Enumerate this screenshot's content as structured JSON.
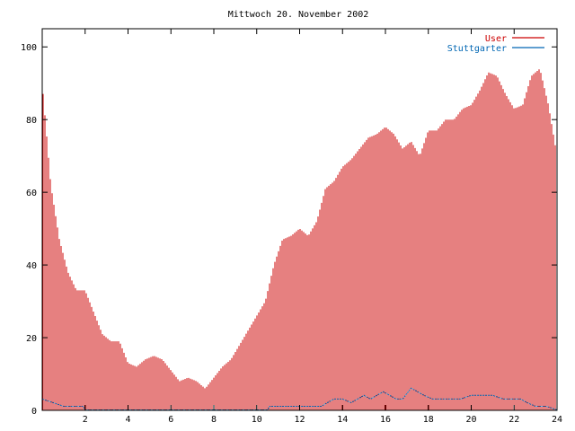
{
  "chart_data": {
    "type": "bar",
    "title": "Mittwoch 20. November 2002",
    "xlabel": "",
    "ylabel": "",
    "xlim": [
      0,
      24
    ],
    "ylim": [
      0,
      105
    ],
    "x_ticks": [
      "2",
      "4",
      "6",
      "8",
      "10",
      "12",
      "14",
      "16",
      "18",
      "20",
      "22",
      "24"
    ],
    "y_ticks": [
      "0",
      "20",
      "40",
      "60",
      "80",
      "100"
    ],
    "x_tick_values": [
      2,
      4,
      6,
      8,
      10,
      12,
      14,
      16,
      18,
      20,
      22,
      24
    ],
    "y_tick_values": [
      0,
      20,
      40,
      60,
      80,
      100
    ],
    "grid": false,
    "legend_position": "top-right",
    "series": [
      {
        "name": "User",
        "color": "#cc0000",
        "style": "impulses",
        "points": [
          [
            0.0,
            90
          ],
          [
            0.4,
            62
          ],
          [
            0.8,
            47
          ],
          [
            1.2,
            38
          ],
          [
            1.6,
            33
          ],
          [
            2.0,
            33
          ],
          [
            2.4,
            27
          ],
          [
            2.8,
            21
          ],
          [
            3.2,
            19
          ],
          [
            3.6,
            19
          ],
          [
            4.0,
            13
          ],
          [
            4.4,
            12
          ],
          [
            4.8,
            14
          ],
          [
            5.2,
            15
          ],
          [
            5.6,
            14
          ],
          [
            6.0,
            11
          ],
          [
            6.4,
            8
          ],
          [
            6.8,
            9
          ],
          [
            7.2,
            8
          ],
          [
            7.6,
            6
          ],
          [
            8.0,
            9
          ],
          [
            8.4,
            12
          ],
          [
            8.8,
            14
          ],
          [
            9.2,
            18
          ],
          [
            9.6,
            22
          ],
          [
            10.0,
            26
          ],
          [
            10.4,
            30
          ],
          [
            10.8,
            40
          ],
          [
            11.2,
            47
          ],
          [
            11.6,
            48
          ],
          [
            12.0,
            50
          ],
          [
            12.4,
            48
          ],
          [
            12.8,
            52
          ],
          [
            13.2,
            61
          ],
          [
            13.6,
            63
          ],
          [
            14.0,
            67
          ],
          [
            14.4,
            69
          ],
          [
            14.8,
            72
          ],
          [
            15.2,
            75
          ],
          [
            15.6,
            76
          ],
          [
            16.0,
            78
          ],
          [
            16.4,
            76
          ],
          [
            16.8,
            72
          ],
          [
            17.2,
            74
          ],
          [
            17.6,
            70
          ],
          [
            18.0,
            77
          ],
          [
            18.4,
            77
          ],
          [
            18.8,
            80
          ],
          [
            19.2,
            80
          ],
          [
            19.6,
            83
          ],
          [
            20.0,
            84
          ],
          [
            20.4,
            88
          ],
          [
            20.8,
            93
          ],
          [
            21.2,
            92
          ],
          [
            21.6,
            87
          ],
          [
            22.0,
            83
          ],
          [
            22.4,
            84
          ],
          [
            22.8,
            92
          ],
          [
            23.2,
            94
          ],
          [
            23.6,
            84
          ],
          [
            24.0,
            70
          ]
        ]
      },
      {
        "name": "Stuttgarter",
        "color": "#0066b3",
        "style": "line",
        "points": [
          [
            0.0,
            3
          ],
          [
            0.5,
            2
          ],
          [
            1.0,
            1
          ],
          [
            1.5,
            1
          ],
          [
            1.9,
            1
          ],
          [
            2.0,
            0
          ],
          [
            10.0,
            0
          ],
          [
            10.5,
            0
          ],
          [
            10.6,
            1
          ],
          [
            11.5,
            1
          ],
          [
            12.5,
            1
          ],
          [
            13.0,
            1
          ],
          [
            13.3,
            2
          ],
          [
            13.6,
            3
          ],
          [
            14.0,
            3
          ],
          [
            14.4,
            2
          ],
          [
            14.7,
            3
          ],
          [
            15.0,
            4
          ],
          [
            15.3,
            3
          ],
          [
            15.6,
            4
          ],
          [
            15.9,
            5
          ],
          [
            16.2,
            4
          ],
          [
            16.5,
            3
          ],
          [
            16.8,
            3
          ],
          [
            17.2,
            6
          ],
          [
            17.5,
            5
          ],
          [
            17.8,
            4
          ],
          [
            18.2,
            3
          ],
          [
            18.6,
            3
          ],
          [
            19.0,
            3
          ],
          [
            19.5,
            3
          ],
          [
            20.0,
            4
          ],
          [
            20.5,
            4
          ],
          [
            21.0,
            4
          ],
          [
            21.5,
            3
          ],
          [
            22.0,
            3
          ],
          [
            22.3,
            3
          ],
          [
            22.6,
            2
          ],
          [
            23.0,
            1
          ],
          [
            23.5,
            1
          ],
          [
            24.0,
            0
          ]
        ]
      }
    ]
  }
}
